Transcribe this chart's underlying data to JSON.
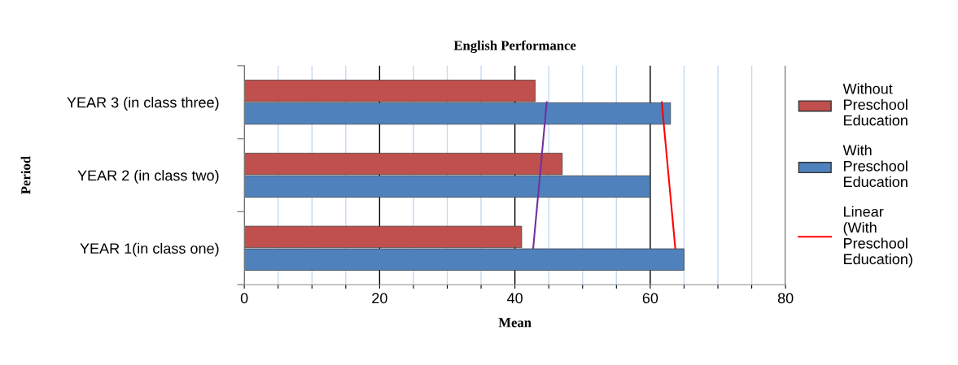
{
  "chart_data": {
    "type": "bar",
    "orientation": "horizontal",
    "title": "English Performance",
    "xlabel": "Mean",
    "ylabel": "Period",
    "categories": [
      "YEAR 3 (in class three)",
      "YEAR 2 (in class two)",
      "YEAR 1(in class one)"
    ],
    "series": [
      {
        "name": "Without Preschool Education",
        "color": "#c0504d",
        "values": [
          43,
          47,
          41
        ]
      },
      {
        "name": "With Preschool Education",
        "color": "#4f81bd",
        "values": [
          63,
          60,
          65
        ]
      },
      {
        "name": "Linear (With Preschool Education)",
        "type": "line",
        "color": "#ff0000",
        "values": [
          61.7,
          62.7,
          63.7
        ]
      },
      {
        "type": "line",
        "color": "#7030a0",
        "values": [
          44.7,
          43.7,
          42.7
        ]
      }
    ],
    "xlim": [
      0,
      80
    ],
    "xticks": [
      0,
      {
        "value": 5,
        "label": null
      },
      {
        "value": 10,
        "label": null
      },
      {
        "value": 15,
        "label": null
      },
      20,
      {
        "value": 25,
        "label": null
      },
      {
        "value": 30,
        "label": null
      },
      {
        "value": 35,
        "label": null
      },
      40,
      {
        "value": 45,
        "label": null
      },
      {
        "value": 50,
        "label": null
      },
      {
        "value": 55,
        "label": null
      },
      60,
      {
        "value": 65,
        "label": null
      },
      {
        "value": 70,
        "label": null
      },
      {
        "value": 75,
        "label": null
      },
      80
    ],
    "grid": "x",
    "legend": "right"
  }
}
